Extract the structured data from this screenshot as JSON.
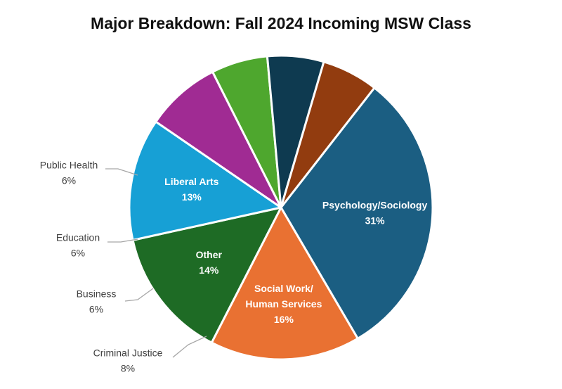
{
  "chart_data": {
    "type": "pie",
    "title": "Major Breakdown: Fall 2024 Incoming MSW Class",
    "slices": [
      {
        "name": "Psychology/Sociology",
        "label_lines": [
          "Psychology/Sociology"
        ],
        "value_label": "31%",
        "value": 31,
        "color": "#1B5E82"
      },
      {
        "name": "Social Work/ Human Services",
        "label_lines": [
          "Social Work/",
          "Human Services"
        ],
        "value_label": "16%",
        "value": 16,
        "color": "#E97132"
      },
      {
        "name": "Other",
        "label_lines": [
          "Other"
        ],
        "value_label": "14%",
        "value": 14,
        "color": "#1E6B25"
      },
      {
        "name": "Liberal Arts",
        "label_lines": [
          "Liberal Arts"
        ],
        "value_label": "13%",
        "value": 13,
        "color": "#17A0D5"
      },
      {
        "name": "Criminal Justice",
        "label_lines": [
          "Criminal Justice"
        ],
        "value_label": "8%",
        "value": 8,
        "color": "#A02B93"
      },
      {
        "name": "Business",
        "label_lines": [
          "Business"
        ],
        "value_label": "6%",
        "value": 6,
        "color": "#4EA72E"
      },
      {
        "name": "Education",
        "label_lines": [
          "Education"
        ],
        "value_label": "6%",
        "value": 6,
        "color": "#0E3A50"
      },
      {
        "name": "Public Health",
        "label_lines": [
          "Public Health"
        ],
        "value_label": "6%",
        "value": 6,
        "color": "#923C0F"
      }
    ],
    "label_placement": [
      "inside",
      "inside",
      "inside",
      "inside",
      "outside-left",
      "outside-left",
      "outside-left",
      "outside-left"
    ],
    "legend": "none"
  }
}
